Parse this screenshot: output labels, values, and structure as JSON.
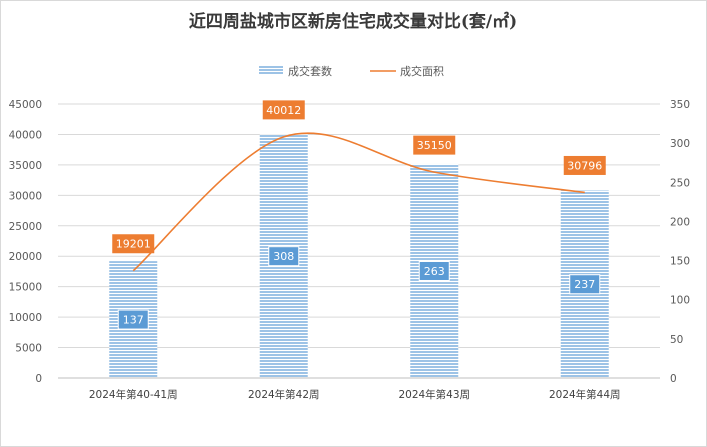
{
  "chart_data": {
    "type": "bar",
    "title": "近四周盐城市区新房住宅成交量对比(套/㎡)",
    "categories": [
      "2024年第40-41周",
      "2024年第42周",
      "2024年第43周",
      "2024年第44周"
    ],
    "series": [
      {
        "name": "成交套数",
        "type": "bar",
        "axis": "left",
        "values": [
          137,
          308,
          263,
          237
        ]
      },
      {
        "name": "成交面积",
        "type": "line",
        "axis": "right",
        "values": [
          19201,
          40012,
          35150,
          30796
        ]
      }
    ],
    "y_left": {
      "min": 0,
      "max": 45000,
      "step": 5000,
      "ticks": [
        "0",
        "5000",
        "10000",
        "15000",
        "20000",
        "25000",
        "30000",
        "35000",
        "40000",
        "45000"
      ]
    },
    "y_right": {
      "min": 0,
      "max": 350,
      "step": 50,
      "ticks": [
        "0",
        "50",
        "100",
        "150",
        "200",
        "250",
        "300",
        "350"
      ]
    },
    "legend": "top-center",
    "grid": true,
    "colors": {
      "bar": "#9dc3e6",
      "bar_stripe": "#ffffff",
      "line": "#ed7d31",
      "bar_label_bg": "#5b9bd5",
      "line_label_bg": "#ed7d31"
    }
  }
}
